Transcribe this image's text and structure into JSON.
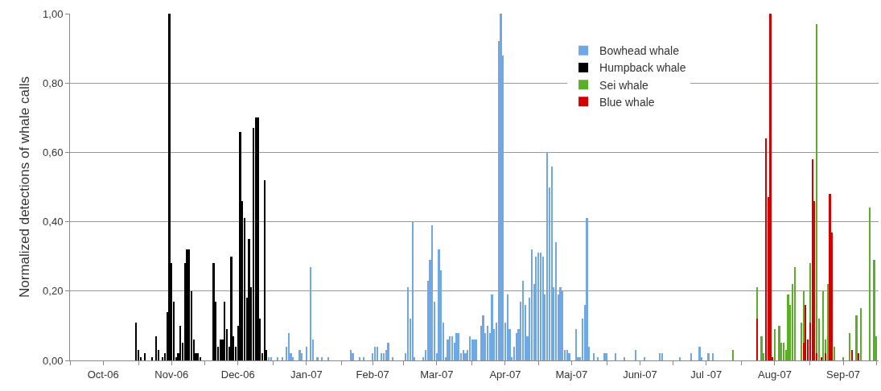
{
  "chart_data": {
    "type": "bar",
    "ylabel": "Normalized detections of whale calls",
    "xlim": [
      "2006-10-01",
      "2007-10-02"
    ],
    "ylim": [
      0,
      1
    ],
    "yticks": [
      {
        "value": 0,
        "label": "0,00"
      },
      {
        "value": 0.2,
        "label": "0,20"
      },
      {
        "value": 0.4,
        "label": "0,40"
      },
      {
        "value": 0.6,
        "label": "0,60"
      },
      {
        "value": 0.8,
        "label": "0,80"
      },
      {
        "value": 1,
        "label": "1,00"
      }
    ],
    "xticks": [
      {
        "value": "2006-10-01",
        "label": null
      },
      {
        "value": "2006-10-16",
        "label": "Oct-06"
      },
      {
        "value": "2006-11-01",
        "label": null
      },
      {
        "value": "2006-11-16",
        "label": "Nov-06"
      },
      {
        "value": "2006-12-01",
        "label": null
      },
      {
        "value": "2006-12-16",
        "label": "Dec-06"
      },
      {
        "value": "2007-01-01",
        "label": null
      },
      {
        "value": "2007-01-16",
        "label": "Jan-07"
      },
      {
        "value": "2007-02-01",
        "label": null
      },
      {
        "value": "2007-02-15",
        "label": "Feb-07"
      },
      {
        "value": "2007-03-01",
        "label": null
      },
      {
        "value": "2007-03-16",
        "label": "Mar-07"
      },
      {
        "value": "2007-04-01",
        "label": null
      },
      {
        "value": "2007-04-16",
        "label": "Apr-07"
      },
      {
        "value": "2007-05-01",
        "label": null
      },
      {
        "value": "2007-05-16",
        "label": "Maj-07"
      },
      {
        "value": "2007-06-01",
        "label": null
      },
      {
        "value": "2007-06-16",
        "label": "Juni-07"
      },
      {
        "value": "2007-07-01",
        "label": null
      },
      {
        "value": "2007-07-16",
        "label": "Jul -07"
      },
      {
        "value": "2007-08-01",
        "label": null
      },
      {
        "value": "2007-08-16",
        "label": "Aug-07"
      },
      {
        "value": "2007-09-01",
        "label": null
      },
      {
        "value": "2007-09-16",
        "label": "Sep-07"
      },
      {
        "value": "2007-10-01",
        "label": null
      }
    ],
    "grid": "y",
    "legend": "top right",
    "series": [
      {
        "name": "Bowhead whale",
        "color": "#6fa8e4",
        "x": [
          "2006-12-30",
          "2006-12-31",
          "2007-01-03",
          "2007-01-05",
          "2007-01-07",
          "2007-01-08",
          "2007-01-09",
          "2007-01-10",
          "2007-01-13",
          "2007-01-14",
          "2007-01-16",
          "2007-01-18",
          "2007-01-19",
          "2007-01-21",
          "2007-01-23",
          "2007-01-26",
          "2007-02-05",
          "2007-02-06",
          "2007-02-09",
          "2007-02-11",
          "2007-02-15",
          "2007-02-16",
          "2007-02-17",
          "2007-02-19",
          "2007-02-20",
          "2007-02-21",
          "2007-02-22",
          "2007-02-24",
          "2007-03-02",
          "2007-03-03",
          "2007-03-04",
          "2007-03-05",
          "2007-03-06",
          "2007-03-10",
          "2007-03-11",
          "2007-03-12",
          "2007-03-13",
          "2007-03-14",
          "2007-03-15",
          "2007-03-16",
          "2007-03-17",
          "2007-03-18",
          "2007-03-19",
          "2007-03-20",
          "2007-03-21",
          "2007-03-22",
          "2007-03-23",
          "2007-03-24",
          "2007-03-25",
          "2007-03-26",
          "2007-03-27",
          "2007-03-28",
          "2007-03-29",
          "2007-03-30",
          "2007-03-31",
          "2007-04-01",
          "2007-04-02",
          "2007-04-03",
          "2007-04-05",
          "2007-04-06",
          "2007-04-07",
          "2007-04-08",
          "2007-04-09",
          "2007-04-10",
          "2007-04-11",
          "2007-04-12",
          "2007-04-13",
          "2007-04-14",
          "2007-04-15",
          "2007-04-16",
          "2007-04-17",
          "2007-04-18",
          "2007-04-19",
          "2007-04-20",
          "2007-04-21",
          "2007-04-22",
          "2007-04-23",
          "2007-04-24",
          "2007-04-25",
          "2007-04-26",
          "2007-04-27",
          "2007-04-28",
          "2007-04-29",
          "2007-04-30",
          "2007-05-01",
          "2007-05-02",
          "2007-05-03",
          "2007-05-04",
          "2007-05-05",
          "2007-05-06",
          "2007-05-07",
          "2007-05-08",
          "2007-05-09",
          "2007-05-10",
          "2007-05-11",
          "2007-05-12",
          "2007-05-13",
          "2007-05-14",
          "2007-05-15",
          "2007-05-18",
          "2007-05-19",
          "2007-05-20",
          "2007-05-21",
          "2007-05-22",
          "2007-05-23",
          "2007-05-24",
          "2007-05-26",
          "2007-05-28",
          "2007-05-31",
          "2007-06-01",
          "2007-06-05",
          "2007-06-09",
          "2007-06-14",
          "2007-06-18",
          "2007-06-25",
          "2007-06-26",
          "2007-07-04",
          "2007-07-09",
          "2007-07-13",
          "2007-07-14",
          "2007-07-17",
          "2007-07-19"
        ],
        "values": [
          0.01,
          0.01,
          0.01,
          0.01,
          0.04,
          0.08,
          0.02,
          0.01,
          0.03,
          0.02,
          0.04,
          0.27,
          0.06,
          0.01,
          0.01,
          0.01,
          0.03,
          0.02,
          0.01,
          0.01,
          0.02,
          0.04,
          0.04,
          0.02,
          0.02,
          0.03,
          0.05,
          0.01,
          0.02,
          0.21,
          0.12,
          0.4,
          0.01,
          0.01,
          0.03,
          0.23,
          0.29,
          0.39,
          0.17,
          0.02,
          0.32,
          0.26,
          0.11,
          0.01,
          0.06,
          0.07,
          0.07,
          0.05,
          0.08,
          0.08,
          0.02,
          0.03,
          0.02,
          0.03,
          0.07,
          0.06,
          0.06,
          0.06,
          0.1,
          0.13,
          0.08,
          0.1,
          0.08,
          0.19,
          0.09,
          0.11,
          0.92,
          1.0,
          0.88,
          0.11,
          0.19,
          0.09,
          0.01,
          0.04,
          0.08,
          0.09,
          0.17,
          0.23,
          0.16,
          0.07,
          0.18,
          0.32,
          0.22,
          0.3,
          0.31,
          0.31,
          0.3,
          0.19,
          0.6,
          0.5,
          0.56,
          0.21,
          0.34,
          0.19,
          0.21,
          0.2,
          0.03,
          0.03,
          0.02,
          0.09,
          0.01,
          0.01,
          0.12,
          0.16,
          0.41,
          0.04,
          0.02,
          0.01,
          0.02,
          0.02,
          0.02,
          0.01,
          0.03,
          0.01,
          0.02,
          0.02,
          0.01,
          0.02,
          0.04,
          0.01,
          0.02,
          0.02
        ]
      },
      {
        "name": "Humpback whale",
        "color": "#000000",
        "x": [
          "2006-10-31",
          "2006-11-01",
          "2006-11-02",
          "2006-11-04",
          "2006-11-07",
          "2006-11-09",
          "2006-11-10",
          "2006-11-12",
          "2006-11-13",
          "2006-11-14",
          "2006-11-15",
          "2006-11-16",
          "2006-11-17",
          "2006-11-18",
          "2006-11-19",
          "2006-11-20",
          "2006-11-21",
          "2006-11-22",
          "2006-11-23",
          "2006-11-24",
          "2006-11-25",
          "2006-11-26",
          "2006-11-27",
          "2006-11-28",
          "2006-11-29",
          "2006-12-05",
          "2006-12-06",
          "2006-12-07",
          "2006-12-08",
          "2006-12-09",
          "2006-12-10",
          "2006-12-11",
          "2006-12-12",
          "2006-12-13",
          "2006-12-14",
          "2006-12-15",
          "2006-12-16",
          "2006-12-17",
          "2006-12-18",
          "2006-12-19",
          "2006-12-20",
          "2006-12-21",
          "2006-12-22",
          "2006-12-23",
          "2006-12-24",
          "2006-12-25",
          "2006-12-26",
          "2006-12-27",
          "2006-12-28",
          "2006-12-29"
        ],
        "values": [
          0.11,
          0.03,
          0.01,
          0.02,
          0.01,
          0.07,
          0.03,
          0.01,
          0.02,
          0.14,
          1.0,
          0.28,
          0.17,
          0.01,
          0.02,
          0.1,
          0.05,
          0.28,
          0.32,
          0.32,
          0.2,
          0.06,
          0.02,
          0.02,
          0.01,
          0.28,
          0.17,
          0.04,
          0.06,
          0.06,
          0.17,
          0.09,
          0.04,
          0.3,
          0.07,
          0.04,
          0.1,
          0.66,
          0.46,
          0.41,
          0.18,
          0.35,
          0.21,
          0.67,
          0.7,
          0.7,
          0.12,
          0.02,
          0.52,
          0.03
        ]
      },
      {
        "name": "Sei whale",
        "color": "#5aae28",
        "x": [
          "2007-07-28",
          "2007-08-08",
          "2007-08-10",
          "2007-08-11",
          "2007-08-16",
          "2007-08-18",
          "2007-08-19",
          "2007-08-20",
          "2007-08-21",
          "2007-08-22",
          "2007-08-23",
          "2007-08-24",
          "2007-08-25",
          "2007-08-28",
          "2007-08-29",
          "2007-09-01",
          "2007-09-04",
          "2007-09-05",
          "2007-09-07",
          "2007-09-08",
          "2007-09-09",
          "2007-09-12",
          "2007-09-16",
          "2007-09-19",
          "2007-09-22",
          "2007-09-24",
          "2007-09-28",
          "2007-09-30",
          "2007-10-01"
        ],
        "values": [
          0.03,
          0.21,
          0.07,
          0.02,
          0.09,
          0.1,
          0.05,
          0.05,
          0.03,
          0.19,
          0.16,
          0.22,
          0.27,
          0.11,
          0.2,
          0.28,
          0.97,
          0.12,
          0.2,
          0.06,
          0.22,
          0.04,
          0.01,
          0.08,
          0.13,
          0.15,
          0.44,
          0.29,
          0.07
        ]
      },
      {
        "name": "Blue whale",
        "color": "#d40000",
        "x": [
          "2007-08-08",
          "2007-08-12",
          "2007-08-13",
          "2007-08-14",
          "2007-08-15",
          "2007-08-29",
          "2007-08-30",
          "2007-08-31",
          "2007-09-01",
          "2007-09-02",
          "2007-09-03",
          "2007-09-04",
          "2007-09-06",
          "2007-09-08",
          "2007-09-10",
          "2007-09-11",
          "2007-09-20",
          "2007-09-23"
        ],
        "values": [
          0.12,
          0.64,
          0.47,
          1.0,
          0.01,
          0.05,
          0.16,
          0.06,
          0.11,
          0.58,
          0.46,
          0.02,
          0.01,
          0.02,
          0.48,
          0.37,
          0.03,
          0.02
        ]
      }
    ]
  }
}
